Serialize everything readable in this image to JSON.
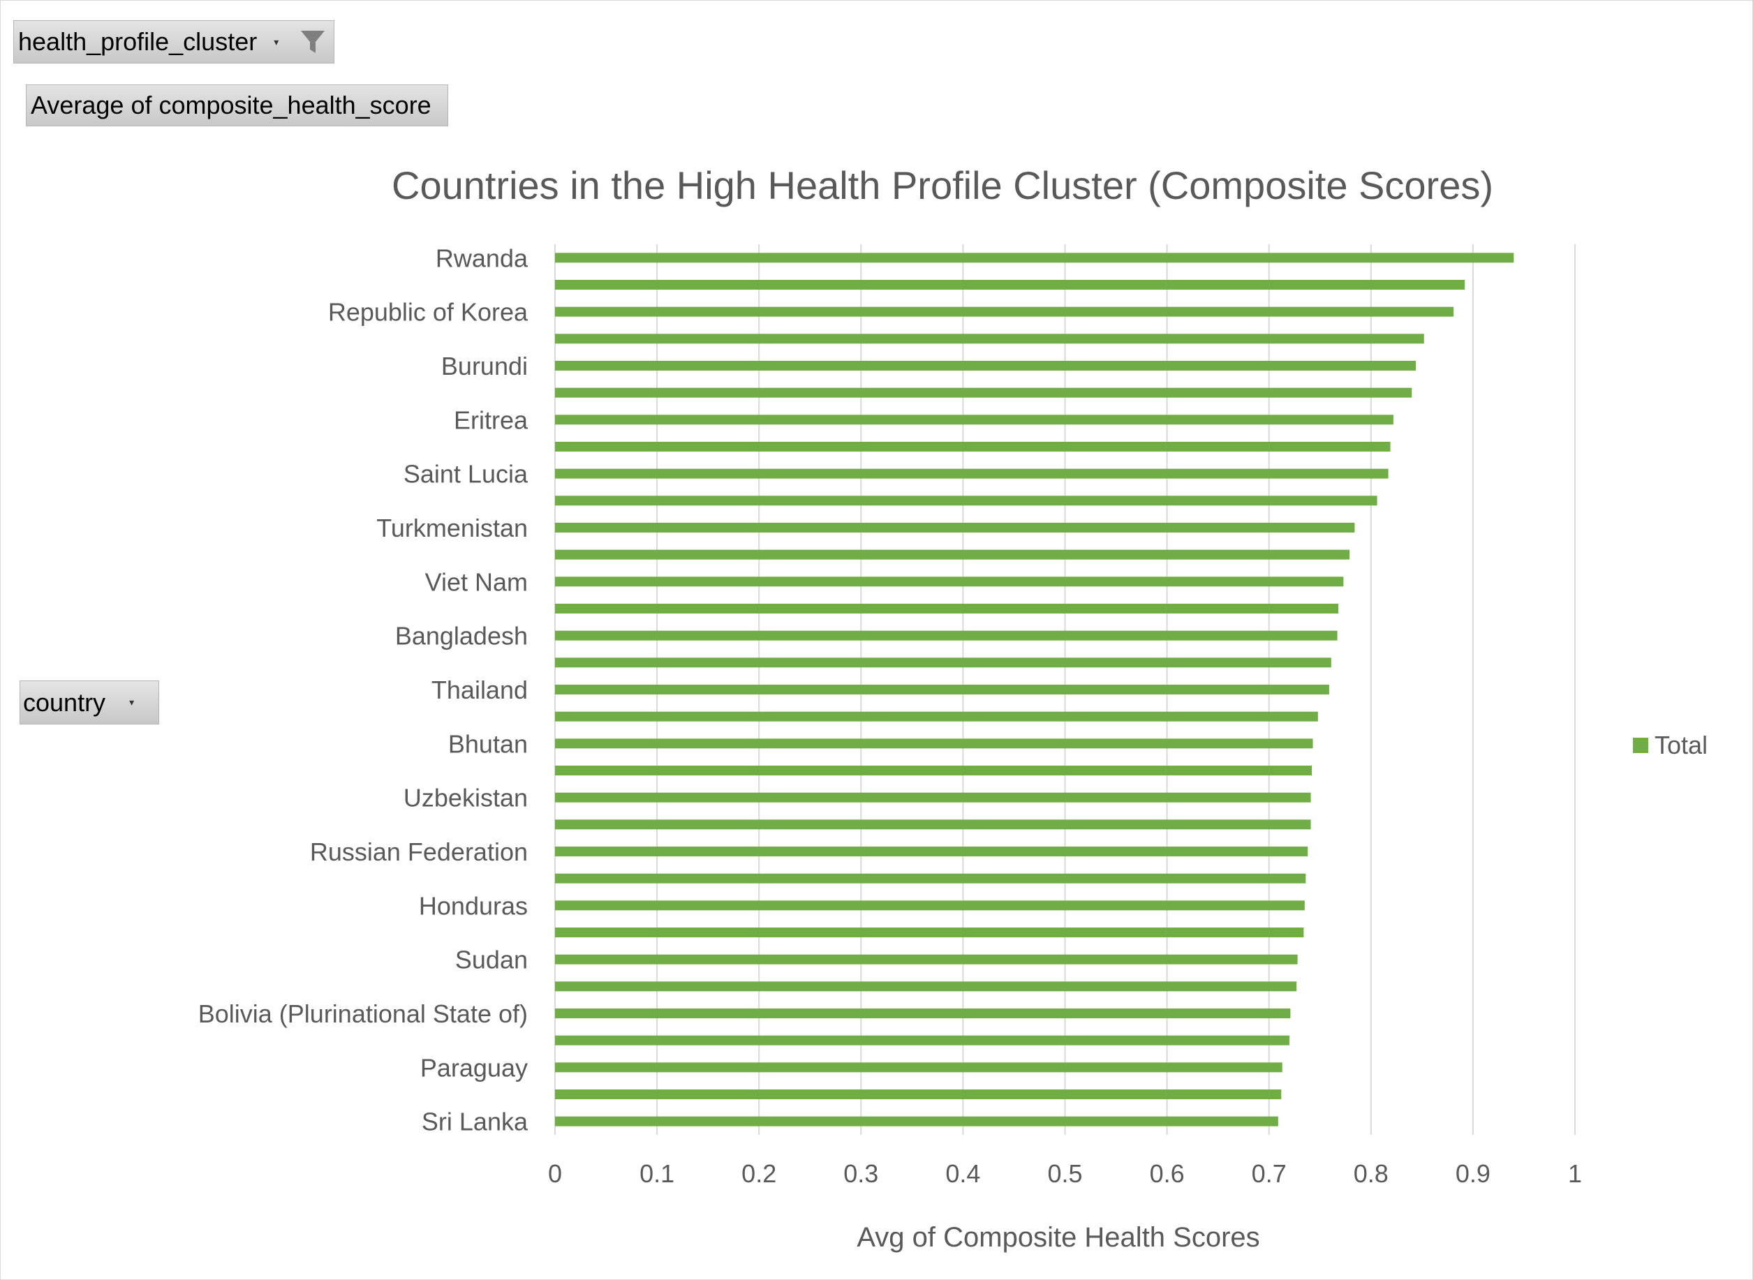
{
  "filter_field": {
    "label": "health_profile_cluster",
    "icon": "filter-funnel-icon"
  },
  "value_field": {
    "label": "Average  of composite_health_score"
  },
  "axis_field": {
    "label": "country"
  },
  "chart_data": {
    "type": "bar",
    "orientation": "horizontal",
    "title": "Countries in the High Health Profile Cluster (Composite Scores)",
    "xlabel": "Avg of Composite Health Scores",
    "ylabel": "",
    "xlim": [
      0,
      1
    ],
    "xticks": [
      "0",
      "0.1",
      "0.2",
      "0.3",
      "0.4",
      "0.5",
      "0.6",
      "0.7",
      "0.8",
      "0.9",
      "1"
    ],
    "grid": true,
    "legend": {
      "position": "right",
      "entries": [
        "Total"
      ]
    },
    "bar_color": "#70ad47",
    "categories": [
      "Rwanda",
      "",
      "Republic of Korea",
      "",
      "Burundi",
      "",
      "Eritrea",
      "",
      "Saint Lucia",
      "",
      "Turkmenistan",
      "",
      "Viet Nam",
      "",
      "Bangladesh",
      "",
      "Thailand",
      "",
      "Bhutan",
      "",
      "Uzbekistan",
      "",
      "Russian Federation",
      "",
      "Honduras",
      "",
      "Sudan",
      "",
      "Bolivia (Plurinational State of)",
      "",
      "Paraguay",
      "",
      "Sri Lanka"
    ],
    "series": [
      {
        "name": "Total",
        "values": [
          0.94,
          0.892,
          0.881,
          0.852,
          0.844,
          0.84,
          0.822,
          0.819,
          0.817,
          0.806,
          0.784,
          0.779,
          0.773,
          0.768,
          0.767,
          0.761,
          0.759,
          0.748,
          0.743,
          0.742,
          0.741,
          0.741,
          0.738,
          0.736,
          0.735,
          0.734,
          0.728,
          0.727,
          0.721,
          0.72,
          0.713,
          0.712,
          0.709
        ]
      }
    ]
  }
}
